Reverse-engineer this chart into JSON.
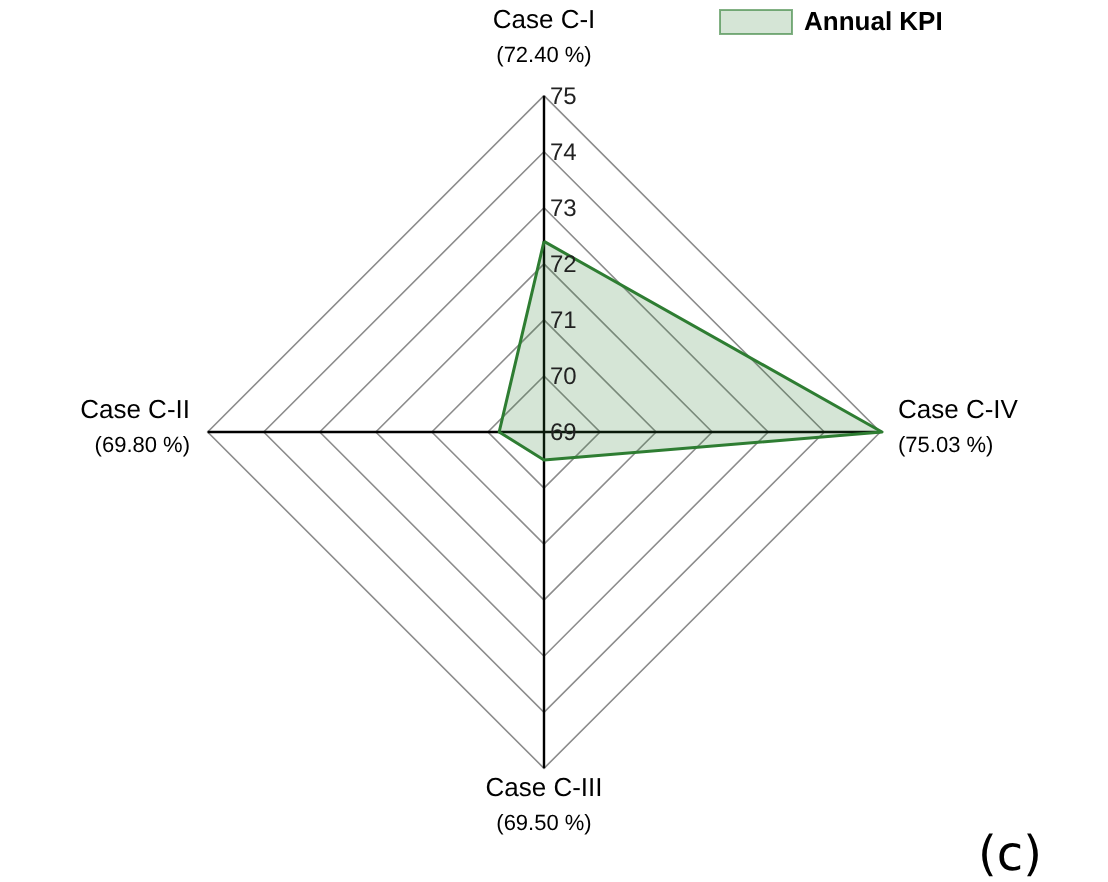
{
  "chart_data": {
    "type": "radar",
    "categories": [
      "Case C-I",
      "Case C-IV",
      "Case C-III",
      "Case C-II"
    ],
    "series": [
      {
        "name": "Annual KPI",
        "color": "#2e7d32",
        "values": [
          72.4,
          75.03,
          69.5,
          69.8
        ]
      }
    ],
    "ylim": [
      69,
      75.03
    ],
    "yticks": [
      69,
      70,
      71,
      72,
      73,
      74,
      75
    ],
    "legend": "top right",
    "marker": "none",
    "line_style": "solid",
    "grid": true,
    "annotations": [
      "(c)",
      "(72.40 %)",
      "(75.03 %)",
      "(69.50 %)",
      "(69.80 %)"
    ]
  }
}
